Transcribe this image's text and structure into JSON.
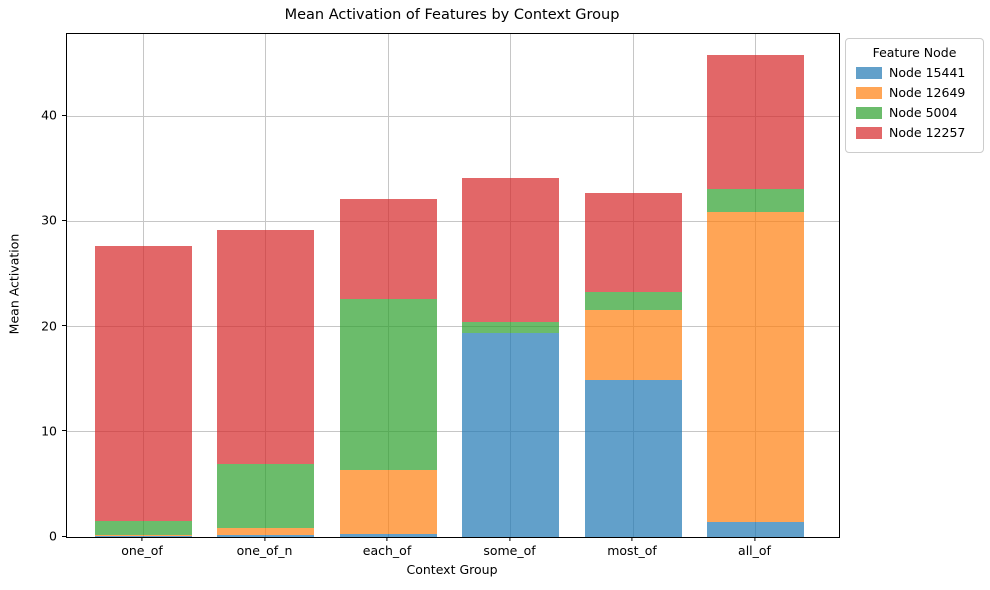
{
  "figure": {
    "background": "#ffffff",
    "grid_color": "#c6c6c6",
    "spine_color": "#000000"
  },
  "chart_data": {
    "type": "bar",
    "stacked": true,
    "title": "Mean Activation of Features by Context Group",
    "xlabel": "Context Group",
    "ylabel": "Mean Activation",
    "categories": [
      "one_of",
      "one_of_n",
      "each_of",
      "some_of",
      "most_of",
      "all_of"
    ],
    "series": [
      {
        "name": "Node 15441",
        "color": "#1f77b4",
        "values": [
          0.05,
          0.2,
          0.25,
          19.4,
          14.9,
          1.45
        ]
      },
      {
        "name": "Node 12649",
        "color": "#ff7f0e",
        "values": [
          0.15,
          0.65,
          6.1,
          0.0,
          6.7,
          29.4
        ]
      },
      {
        "name": "Node 5004",
        "color": "#2ca02c",
        "values": [
          1.3,
          6.1,
          16.25,
          1.0,
          1.7,
          2.25
        ]
      },
      {
        "name": "Node 12257",
        "color": "#d62728",
        "values": [
          26.2,
          22.25,
          9.5,
          13.7,
          9.4,
          12.7
        ]
      }
    ],
    "totals": [
      27.7,
      29.2,
      32.1,
      34.1,
      32.7,
      45.8
    ],
    "bar_alpha": 0.7,
    "ylim": [
      0,
      47.8
    ],
    "yticks": [
      0,
      10,
      20,
      30,
      40
    ],
    "grid": true,
    "legend": {
      "title": "Feature Node",
      "entries": [
        "Node 15441",
        "Node 12649",
        "Node 5004",
        "Node 12257"
      ],
      "position": "upper-right-outside"
    }
  }
}
